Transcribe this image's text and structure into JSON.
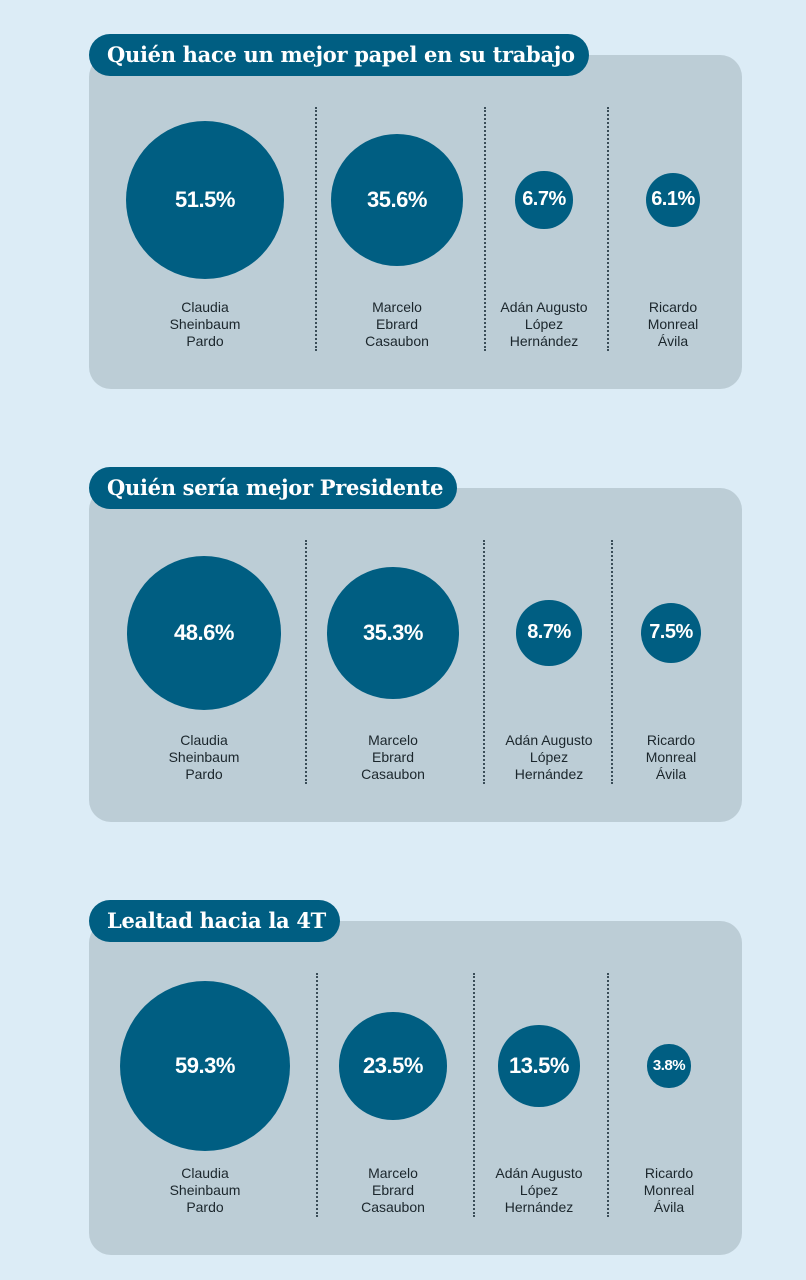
{
  "colors": {
    "background": "#dcecf6",
    "panel": "#bccdd6",
    "accent": "#005e82",
    "text": "#1b262c"
  },
  "chart_data": [
    {
      "type": "bubble",
      "title": "Quién hace un mejor papel en su trabajo",
      "categories": [
        "Claudia\nSheinbaum\nPardo",
        "Marcelo\nEbrard\nCasaubon",
        "Adán Augusto\nLópez\nHernández",
        "Ricardo\nMonreal\nÁvila"
      ],
      "values": [
        51.5,
        35.6,
        6.7,
        6.1
      ],
      "labels": [
        "51.5%",
        "35.6%",
        "6.7%",
        "6.1%"
      ]
    },
    {
      "type": "bubble",
      "title": "Quién sería mejor Presidente",
      "categories": [
        "Claudia\nSheinbaum\nPardo",
        "Marcelo\nEbrard\nCasaubon",
        "Adán Augusto\nLópez\nHernández",
        "Ricardo\nMonreal\nÁvila"
      ],
      "values": [
        48.6,
        35.3,
        8.7,
        7.5
      ],
      "labels": [
        "48.6%",
        "35.3%",
        "8.7%",
        "7.5%"
      ]
    },
    {
      "type": "bubble",
      "title": "Lealtad hacia la 4T",
      "categories": [
        "Claudia\nSheinbaum\nPardo",
        "Marcelo\nEbrard\nCasaubon",
        "Adán Augusto\nLópez\nHernández",
        "Ricardo\nMonreal\nÁvila"
      ],
      "values": [
        59.3,
        23.5,
        13.5,
        3.8
      ],
      "labels": [
        "59.3%",
        "23.5%",
        "13.5%",
        "3.8%"
      ]
    }
  ]
}
